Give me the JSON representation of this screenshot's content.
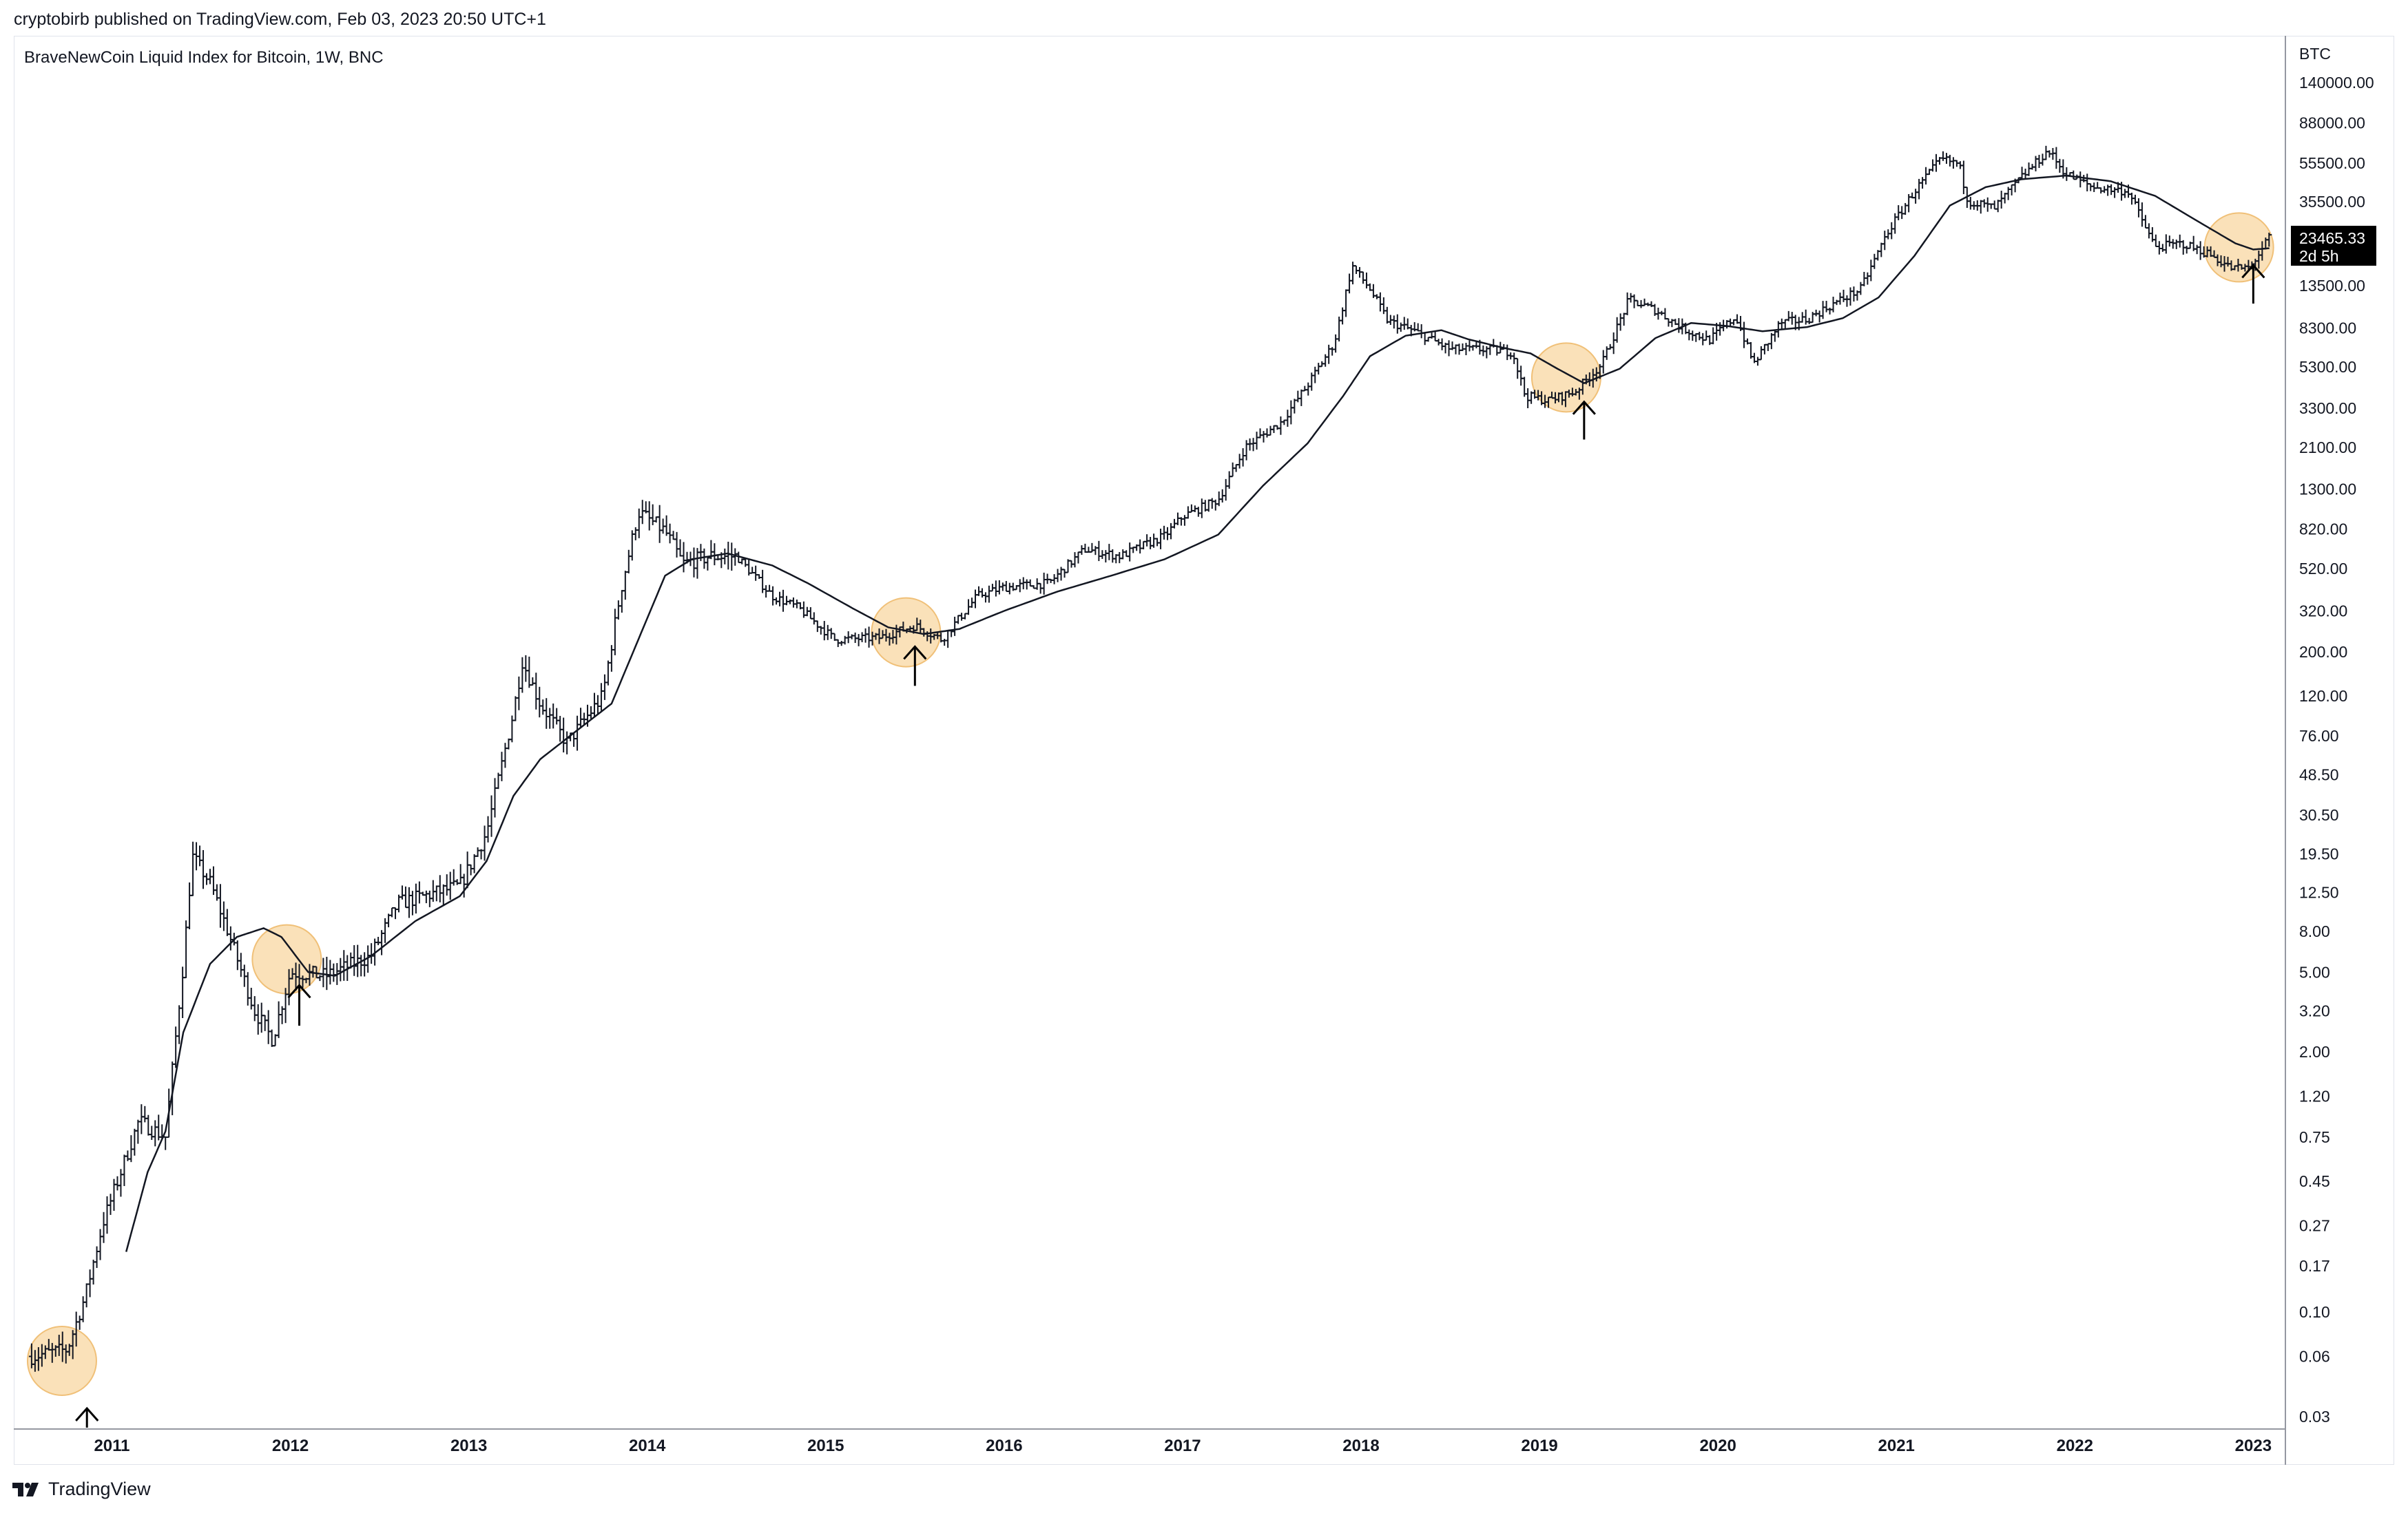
{
  "header": {
    "publisher_line": "cryptobirb published on TradingView.com, Feb 03, 2023 20:50 UTC+1"
  },
  "chart_title": "BraveNewCoin Liquid Index for Bitcoin, 1W, BNC",
  "price_scale": {
    "currency": "BTC",
    "last_price": "23465.33",
    "countdown": "2d 5h"
  },
  "footer": {
    "brand": "TradingView"
  },
  "colors": {
    "bars": "#131722",
    "ma_line": "#131722",
    "highlight_fill": "#f9d9a8",
    "highlight_stroke": "#f0c078",
    "price_label_bg": "#000000",
    "price_label_text": "#ffffff"
  },
  "chart_data": {
    "type": "ohlc-bar",
    "title": "BraveNewCoin Liquid Index for Bitcoin, 1W, BNC",
    "y_scale": "log",
    "ylim": [
      0.025,
      170000
    ],
    "xlim": [
      2010.45,
      2023.18
    ],
    "y_ticks": [
      "140000.00",
      "88000.00",
      "55500.00",
      "35500.00",
      "13500.00",
      "8300.00",
      "5300.00",
      "3300.00",
      "2100.00",
      "1300.00",
      "820.00",
      "520.00",
      "320.00",
      "200.00",
      "120.00",
      "76.00",
      "48.50",
      "30.50",
      "19.50",
      "12.50",
      "8.00",
      "5.00",
      "3.20",
      "2.00",
      "1.20",
      "0.75",
      "0.45",
      "0.27",
      "0.17",
      "0.10",
      "0.06",
      "0.03"
    ],
    "x_ticks": [
      "2011",
      "2012",
      "2013",
      "2014",
      "2015",
      "2016",
      "2017",
      "2018",
      "2019",
      "2020",
      "2021",
      "2022",
      "2023"
    ],
    "price_path": [
      {
        "t": 2010.55,
        "p": 0.06
      },
      {
        "t": 2010.75,
        "p": 0.065
      },
      {
        "t": 2010.85,
        "p": 0.12
      },
      {
        "t": 2010.95,
        "p": 0.28
      },
      {
        "t": 2011.15,
        "p": 0.9
      },
      {
        "t": 2011.3,
        "p": 0.75
      },
      {
        "t": 2011.4,
        "p": 5.5
      },
      {
        "t": 2011.45,
        "p": 19
      },
      {
        "t": 2011.55,
        "p": 14
      },
      {
        "t": 2011.65,
        "p": 8
      },
      {
        "t": 2011.8,
        "p": 3.2
      },
      {
        "t": 2011.9,
        "p": 2.3
      },
      {
        "t": 2012.0,
        "p": 5
      },
      {
        "t": 2012.2,
        "p": 4.8
      },
      {
        "t": 2012.45,
        "p": 6
      },
      {
        "t": 2012.6,
        "p": 11
      },
      {
        "t": 2012.75,
        "p": 12
      },
      {
        "t": 2012.95,
        "p": 13.5
      },
      {
        "t": 2013.1,
        "p": 25
      },
      {
        "t": 2013.25,
        "p": 100
      },
      {
        "t": 2013.3,
        "p": 180
      },
      {
        "t": 2013.4,
        "p": 110
      },
      {
        "t": 2013.55,
        "p": 70
      },
      {
        "t": 2013.75,
        "p": 120
      },
      {
        "t": 2013.85,
        "p": 400
      },
      {
        "t": 2013.95,
        "p": 1000
      },
      {
        "t": 2014.1,
        "p": 800
      },
      {
        "t": 2014.2,
        "p": 550
      },
      {
        "t": 2014.35,
        "p": 600
      },
      {
        "t": 2014.5,
        "p": 600
      },
      {
        "t": 2014.7,
        "p": 380
      },
      {
        "t": 2014.85,
        "p": 330
      },
      {
        "t": 2015.05,
        "p": 230
      },
      {
        "t": 2015.3,
        "p": 235
      },
      {
        "t": 2015.5,
        "p": 270
      },
      {
        "t": 2015.65,
        "p": 230
      },
      {
        "t": 2015.85,
        "p": 380
      },
      {
        "t": 2016.0,
        "p": 420
      },
      {
        "t": 2016.25,
        "p": 440
      },
      {
        "t": 2016.45,
        "p": 650
      },
      {
        "t": 2016.65,
        "p": 600
      },
      {
        "t": 2016.9,
        "p": 760
      },
      {
        "t": 2017.0,
        "p": 950
      },
      {
        "t": 2017.2,
        "p": 1150
      },
      {
        "t": 2017.35,
        "p": 2100
      },
      {
        "t": 2017.55,
        "p": 2800
      },
      {
        "t": 2017.7,
        "p": 4300
      },
      {
        "t": 2017.85,
        "p": 7000
      },
      {
        "t": 2017.95,
        "p": 17000
      },
      {
        "t": 2018.05,
        "p": 13000
      },
      {
        "t": 2018.15,
        "p": 9000
      },
      {
        "t": 2018.3,
        "p": 8000
      },
      {
        "t": 2018.5,
        "p": 6500
      },
      {
        "t": 2018.7,
        "p": 6500
      },
      {
        "t": 2018.85,
        "p": 6300
      },
      {
        "t": 2018.92,
        "p": 3800
      },
      {
        "t": 2019.05,
        "p": 3600
      },
      {
        "t": 2019.2,
        "p": 4000
      },
      {
        "t": 2019.35,
        "p": 5500
      },
      {
        "t": 2019.45,
        "p": 9000
      },
      {
        "t": 2019.5,
        "p": 11500
      },
      {
        "t": 2019.65,
        "p": 10200
      },
      {
        "t": 2019.8,
        "p": 8300
      },
      {
        "t": 2019.95,
        "p": 7200
      },
      {
        "t": 2020.1,
        "p": 9500
      },
      {
        "t": 2020.2,
        "p": 5500
      },
      {
        "t": 2020.35,
        "p": 8800
      },
      {
        "t": 2020.5,
        "p": 9200
      },
      {
        "t": 2020.65,
        "p": 11000
      },
      {
        "t": 2020.8,
        "p": 13000
      },
      {
        "t": 2020.95,
        "p": 25000
      },
      {
        "t": 2021.1,
        "p": 40000
      },
      {
        "t": 2021.25,
        "p": 58000
      },
      {
        "t": 2021.35,
        "p": 55000
      },
      {
        "t": 2021.4,
        "p": 36000
      },
      {
        "t": 2021.55,
        "p": 33000
      },
      {
        "t": 2021.7,
        "p": 47000
      },
      {
        "t": 2021.85,
        "p": 64000
      },
      {
        "t": 2021.95,
        "p": 49000
      },
      {
        "t": 2022.1,
        "p": 42000
      },
      {
        "t": 2022.3,
        "p": 40000
      },
      {
        "t": 2022.45,
        "p": 21000
      },
      {
        "t": 2022.6,
        "p": 22000
      },
      {
        "t": 2022.75,
        "p": 19500
      },
      {
        "t": 2022.88,
        "p": 16500
      },
      {
        "t": 2022.98,
        "p": 16600
      },
      {
        "t": 2023.09,
        "p": 23465
      }
    ],
    "moving_average": [
      {
        "t": 2011.08,
        "p": 0.2
      },
      {
        "t": 2011.2,
        "p": 0.5
      },
      {
        "t": 2011.3,
        "p": 0.8
      },
      {
        "t": 2011.4,
        "p": 2.5
      },
      {
        "t": 2011.55,
        "p": 5.5
      },
      {
        "t": 2011.7,
        "p": 7.5
      },
      {
        "t": 2011.85,
        "p": 8.3
      },
      {
        "t": 2011.95,
        "p": 7.5
      },
      {
        "t": 2012.1,
        "p": 5.0
      },
      {
        "t": 2012.25,
        "p": 4.8
      },
      {
        "t": 2012.45,
        "p": 6
      },
      {
        "t": 2012.7,
        "p": 9
      },
      {
        "t": 2012.95,
        "p": 12
      },
      {
        "t": 2013.1,
        "p": 18
      },
      {
        "t": 2013.25,
        "p": 38
      },
      {
        "t": 2013.4,
        "p": 58
      },
      {
        "t": 2013.6,
        "p": 80
      },
      {
        "t": 2013.8,
        "p": 110
      },
      {
        "t": 2013.95,
        "p": 230
      },
      {
        "t": 2014.1,
        "p": 480
      },
      {
        "t": 2014.25,
        "p": 580
      },
      {
        "t": 2014.45,
        "p": 620
      },
      {
        "t": 2014.7,
        "p": 540
      },
      {
        "t": 2014.9,
        "p": 440
      },
      {
        "t": 2015.15,
        "p": 330
      },
      {
        "t": 2015.35,
        "p": 265
      },
      {
        "t": 2015.55,
        "p": 245
      },
      {
        "t": 2015.75,
        "p": 260
      },
      {
        "t": 2016.0,
        "p": 320
      },
      {
        "t": 2016.3,
        "p": 400
      },
      {
        "t": 2016.6,
        "p": 480
      },
      {
        "t": 2016.9,
        "p": 580
      },
      {
        "t": 2017.2,
        "p": 770
      },
      {
        "t": 2017.45,
        "p": 1350
      },
      {
        "t": 2017.7,
        "p": 2200
      },
      {
        "t": 2017.9,
        "p": 3800
      },
      {
        "t": 2018.05,
        "p": 6000
      },
      {
        "t": 2018.25,
        "p": 7600
      },
      {
        "t": 2018.45,
        "p": 8100
      },
      {
        "t": 2018.6,
        "p": 7300
      },
      {
        "t": 2018.8,
        "p": 6600
      },
      {
        "t": 2018.95,
        "p": 6200
      },
      {
        "t": 2019.1,
        "p": 5200
      },
      {
        "t": 2019.25,
        "p": 4400
      },
      {
        "t": 2019.45,
        "p": 5200
      },
      {
        "t": 2019.65,
        "p": 7400
      },
      {
        "t": 2019.85,
        "p": 8800
      },
      {
        "t": 2020.05,
        "p": 8500
      },
      {
        "t": 2020.25,
        "p": 8000
      },
      {
        "t": 2020.5,
        "p": 8400
      },
      {
        "t": 2020.7,
        "p": 9300
      },
      {
        "t": 2020.9,
        "p": 11800
      },
      {
        "t": 2021.1,
        "p": 19000
      },
      {
        "t": 2021.3,
        "p": 34000
      },
      {
        "t": 2021.5,
        "p": 42000
      },
      {
        "t": 2021.7,
        "p": 46000
      },
      {
        "t": 2021.95,
        "p": 48000
      },
      {
        "t": 2022.2,
        "p": 45000
      },
      {
        "t": 2022.45,
        "p": 38000
      },
      {
        "t": 2022.7,
        "p": 28000
      },
      {
        "t": 2022.9,
        "p": 22000
      },
      {
        "t": 2023.0,
        "p": 20500
      },
      {
        "t": 2023.09,
        "p": 20800
      }
    ],
    "highlights": [
      {
        "t": 2010.72,
        "p": 0.057
      },
      {
        "t": 2011.98,
        "p": 5.8
      },
      {
        "t": 2015.45,
        "p": 250
      },
      {
        "t": 2019.15,
        "p": 4700
      },
      {
        "t": 2022.92,
        "p": 21000
      }
    ],
    "arrows": [
      {
        "t": 2010.86,
        "p_tip": 0.033,
        "p_tail": 0.022
      },
      {
        "t": 2012.05,
        "p_tip": 4.3,
        "p_tail": 2.7
      },
      {
        "t": 2015.5,
        "p_tip": 212,
        "p_tail": 135
      },
      {
        "t": 2019.25,
        "p_tip": 3550,
        "p_tail": 2300
      },
      {
        "t": 2023.0,
        "p_tip": 17100,
        "p_tail": 11000
      }
    ]
  }
}
